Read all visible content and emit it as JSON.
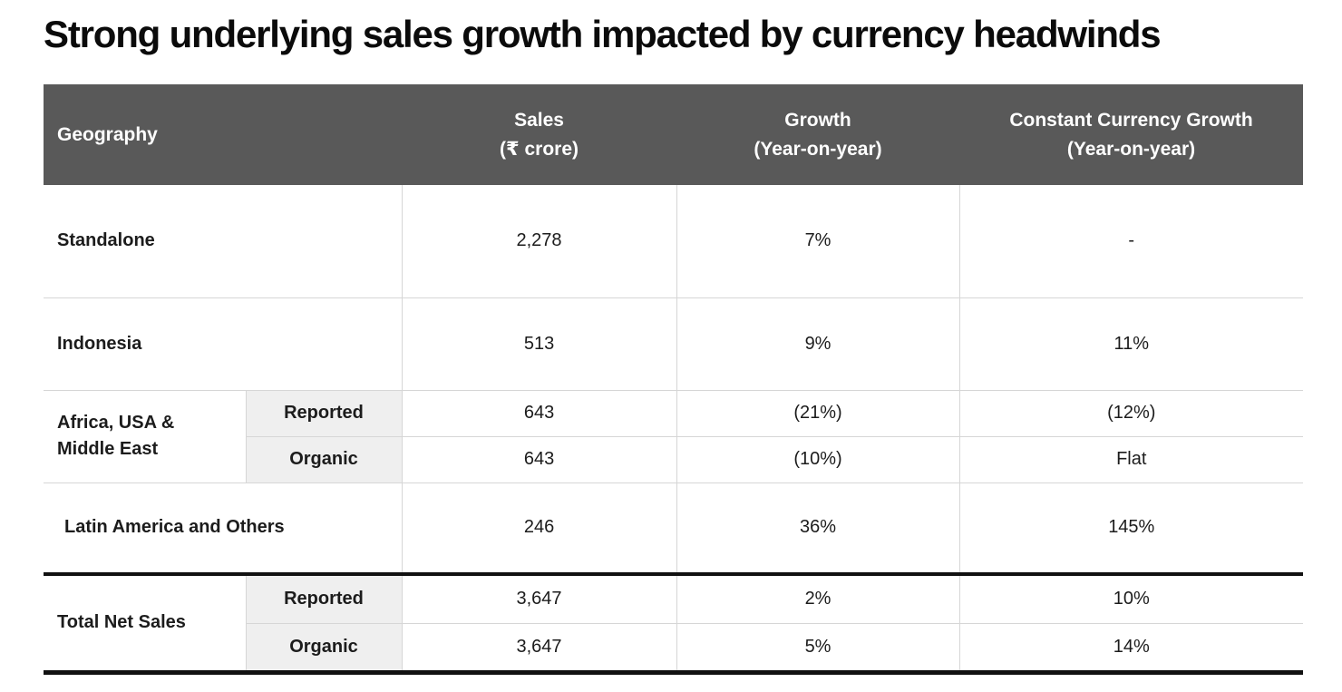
{
  "title": "Strong underlying sales growth impacted by currency headwinds",
  "colors": {
    "header_bg": "#595959",
    "header_text": "#ffffff",
    "sub_cell_bg": "#efefef",
    "divider": "#d6d6d6",
    "thick_rule": "#111111",
    "body_text": "#1c1c1c",
    "background": "#ffffff"
  },
  "table": {
    "header": {
      "geography": "Geography",
      "sales_line1": "Sales",
      "sales_line2": "(₹ crore)",
      "growth_line1": "Growth",
      "growth_line2": "(Year-on-year)",
      "ccg_line1": "Constant Currency Growth",
      "ccg_line2": "(Year-on-year)"
    },
    "rows": [
      {
        "geography": "Standalone",
        "sub": "",
        "sales": "2,278",
        "growth": "7%",
        "ccg": "-"
      },
      {
        "geography": "Indonesia",
        "sub": "",
        "sales": "513",
        "growth": "9%",
        "ccg": "11%"
      },
      {
        "geography": "Africa, USA & Middle East",
        "sub": "Reported",
        "sales": "643",
        "growth": "(21%)",
        "ccg": "(12%)"
      },
      {
        "geography": "Africa, USA & Middle East",
        "sub": "Organic",
        "sales": "643",
        "growth": "(10%)",
        "ccg": "Flat"
      },
      {
        "geography": "Latin America and Others",
        "sub": "",
        "sales": "246",
        "growth": "36%",
        "ccg": "145%"
      },
      {
        "geography": "Total Net Sales",
        "sub": "Reported",
        "sales": "3,647",
        "growth": "2%",
        "ccg": "10%"
      },
      {
        "geography": "Total Net Sales",
        "sub": "Organic",
        "sales": "3,647",
        "growth": "5%",
        "ccg": "14%"
      }
    ]
  }
}
